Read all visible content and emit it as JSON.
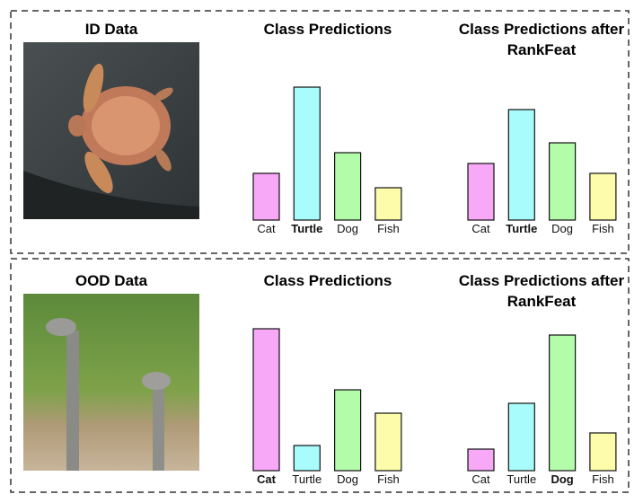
{
  "panels": [
    {
      "title": "ID Data"
    },
    {
      "title": "OOD Data"
    }
  ],
  "chart_data": [
    {
      "type": "bar",
      "title": "Class Predictions",
      "categories": [
        "Cat",
        "Turtle",
        "Dog",
        "Fish"
      ],
      "values": [
        52,
        148,
        75,
        36
      ],
      "colors": [
        "#f7a8f7",
        "#a8fcfc",
        "#b2fcaa",
        "#fcfcaa"
      ],
      "ylim": [
        0,
        160
      ],
      "bold_index": 1
    },
    {
      "type": "bar",
      "title": "Class Predictions after RankFeat",
      "categories": [
        "Cat",
        "Turtle",
        "Dog",
        "Fish"
      ],
      "values": [
        63,
        123,
        86,
        52
      ],
      "colors": [
        "#f7a8f7",
        "#a8fcfc",
        "#b2fcaa",
        "#fcfcaa"
      ],
      "ylim": [
        0,
        160
      ],
      "bold_index": 1
    },
    {
      "type": "bar",
      "title": "Class Predictions",
      "categories": [
        "Cat",
        "Turtle",
        "Dog",
        "Fish"
      ],
      "values": [
        158,
        28,
        90,
        64
      ],
      "colors": [
        "#f7a8f7",
        "#a8fcfc",
        "#b2fcaa",
        "#fcfcaa"
      ],
      "ylim": [
        0,
        160
      ],
      "bold_index": 0
    },
    {
      "type": "bar",
      "title": "Class Predictions after RankFeat",
      "categories": [
        "Cat",
        "Turtle",
        "Dog",
        "Fish"
      ],
      "values": [
        24,
        75,
        151,
        42
      ],
      "colors": [
        "#f7a8f7",
        "#a8fcfc",
        "#b2fcaa",
        "#fcfcaa"
      ],
      "ylim": [
        0,
        160
      ],
      "bold_index": 2
    }
  ]
}
